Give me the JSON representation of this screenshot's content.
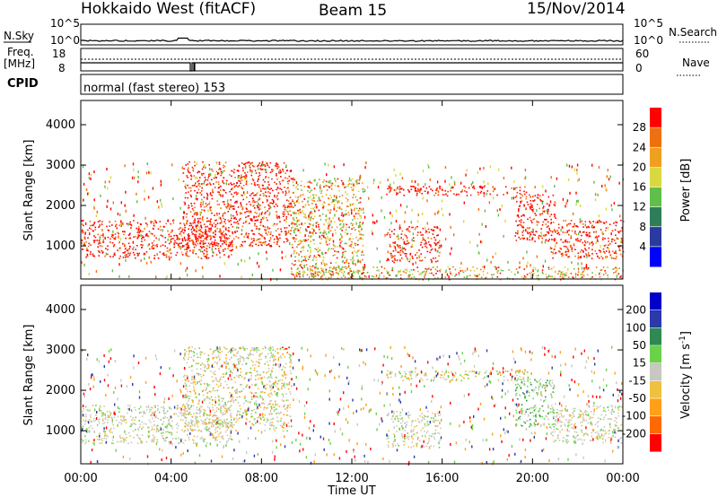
{
  "header": {
    "station": "Hokkaido West (fitACF)",
    "beam": "Beam 15",
    "date": "15/Nov/2014"
  },
  "top_panels": {
    "nsky_label": "N.Sky",
    "nsky_ticks": [
      "10^5",
      "10^0"
    ],
    "nsearch_label": "N.Search",
    "nsearch_ticks": [
      "10^5",
      "10^0"
    ],
    "freq_label": [
      "Freq.",
      "[MHz]"
    ],
    "freq_ticks": [
      "18",
      "8"
    ],
    "nave_label": "Nave",
    "nave_ticks": [
      "60",
      "0"
    ],
    "cpid_label": "CPID",
    "cpid_text": "normal (fast stereo) 153"
  },
  "colors": {
    "power": [
      "#0000ff",
      "#2b3a9e",
      "#2e7d5b",
      "#5fbf4a",
      "#d8d840",
      "#f0a020",
      "#f07010",
      "#ff0000"
    ],
    "velocity": [
      "#ff0000",
      "#ff6a00",
      "#ff9f1a",
      "#f0c040",
      "#c8c8c0",
      "#6ad14a",
      "#2e8a50",
      "#2b3aa8",
      "#0000c8"
    ]
  },
  "chart_data": [
    {
      "type": "heatmap",
      "title": "",
      "xlabel": "Time UT",
      "ylabel": "Slant Range [km]",
      "xticks": [
        "00:00",
        "04:00",
        "08:00",
        "12:00",
        "16:00",
        "20:00",
        "00:00"
      ],
      "yticks": [
        "1000",
        "2000",
        "3000",
        "4000"
      ],
      "xlim": [
        0,
        24
      ],
      "ylim": [
        180,
        4600
      ],
      "colorbar_label": "Power [dB]",
      "colorbar_ticks": [
        "4",
        "8",
        "12",
        "16",
        "20",
        "24",
        "28"
      ],
      "echo_regions": [
        {
          "start_hour": 0.0,
          "end_hour": 6.7,
          "min_km": 700,
          "max_km": 1650,
          "level": "red"
        },
        {
          "start_hour": 4.5,
          "end_hour": 9.3,
          "min_km": 1000,
          "max_km": 3100,
          "level": "red"
        },
        {
          "start_hour": 9.3,
          "end_hour": 12.5,
          "min_km": 200,
          "max_km": 2700,
          "level": "orange"
        },
        {
          "start_hour": 13.5,
          "end_hour": 15.9,
          "min_km": 600,
          "max_km": 1500,
          "level": "red"
        },
        {
          "start_hour": 13.5,
          "end_hour": 19.8,
          "min_km": 2250,
          "max_km": 2500,
          "level": "red"
        },
        {
          "start_hour": 19.2,
          "end_hour": 21.0,
          "min_km": 1100,
          "max_km": 2300,
          "level": "red"
        },
        {
          "start_hour": 20.8,
          "end_hour": 24.0,
          "min_km": 700,
          "max_km": 1650,
          "level": "red"
        },
        {
          "start_hour": 10.0,
          "end_hour": 24.0,
          "min_km": 180,
          "max_km": 500,
          "level": "orange"
        }
      ]
    },
    {
      "type": "heatmap",
      "title": "",
      "xlabel": "Time UT",
      "ylabel": "Slant Range [km]",
      "xticks": [
        "00:00",
        "04:00",
        "08:00",
        "12:00",
        "16:00",
        "20:00",
        "00:00"
      ],
      "yticks": [
        "1000",
        "2000",
        "3000",
        "4000"
      ],
      "xlim": [
        0,
        24
      ],
      "ylim": [
        180,
        4600
      ],
      "colorbar_label": "Velocity [m s-1]",
      "colorbar_ticks": [
        "200",
        "100",
        "50",
        "15",
        "-15",
        "-50",
        "-100",
        "-200"
      ],
      "echo_regions": [
        {
          "start_hour": 0.0,
          "end_hour": 6.7,
          "min_km": 700,
          "max_km": 1650,
          "level": "grey"
        },
        {
          "start_hour": 4.5,
          "end_hour": 9.3,
          "min_km": 1000,
          "max_km": 3100,
          "level": "grey-orange"
        },
        {
          "start_hour": 8.8,
          "end_hour": 9.2,
          "min_km": 2950,
          "max_km": 3100,
          "level": "red"
        },
        {
          "start_hour": 13.5,
          "end_hour": 15.9,
          "min_km": 600,
          "max_km": 1500,
          "level": "grey"
        },
        {
          "start_hour": 13.5,
          "end_hour": 19.8,
          "min_km": 2250,
          "max_km": 2500,
          "level": "orange-green"
        },
        {
          "start_hour": 19.2,
          "end_hour": 21.0,
          "min_km": 1100,
          "max_km": 2300,
          "level": "green"
        },
        {
          "start_hour": 20.8,
          "end_hour": 24.0,
          "min_km": 700,
          "max_km": 1650,
          "level": "grey"
        }
      ]
    }
  ]
}
